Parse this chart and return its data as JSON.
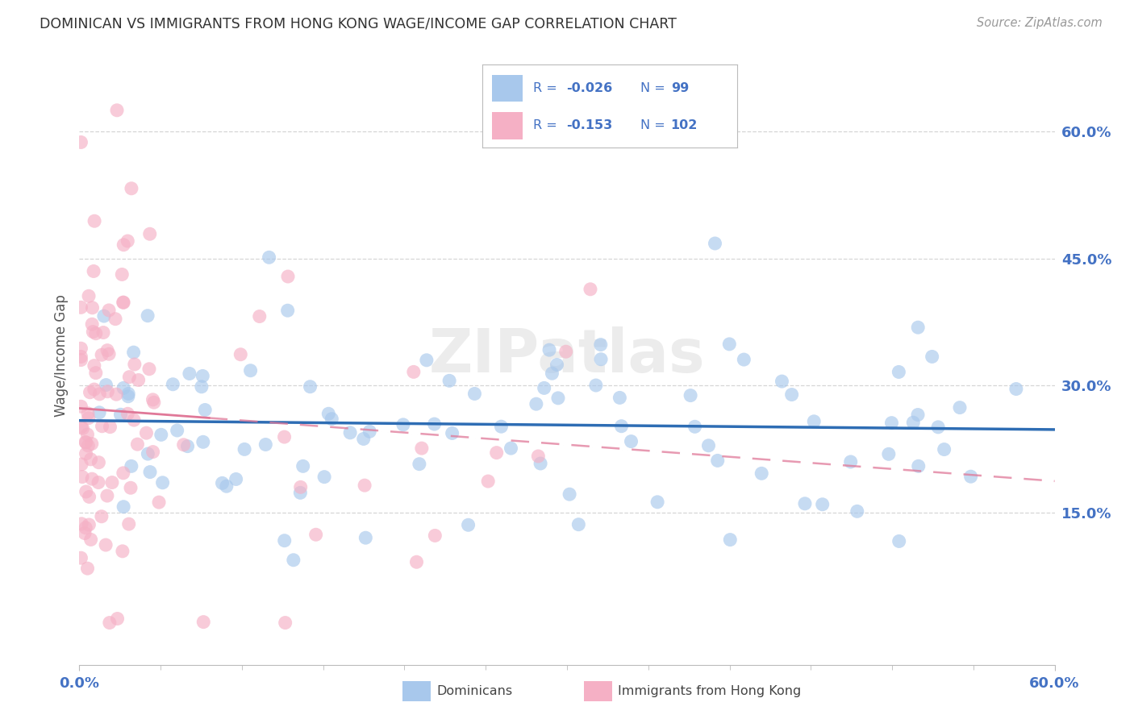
{
  "title": "DOMINICAN VS IMMIGRANTS FROM HONG KONG WAGE/INCOME GAP CORRELATION CHART",
  "source": "Source: ZipAtlas.com",
  "ylabel": "Wage/Income Gap",
  "legend_label_blue": "Dominicans",
  "legend_label_pink": "Immigrants from Hong Kong",
  "blue_color": "#A8C8EC",
  "pink_color": "#F5B0C5",
  "blue_line_color": "#2E6DB4",
  "pink_line_color": "#E07898",
  "background_color": "#FFFFFF",
  "grid_color": "#CCCCCC",
  "title_color": "#333333",
  "source_color": "#999999",
  "legend_text_color": "#4472C4",
  "watermark_color": "#DDDDDD",
  "watermark": "ZIPatlas",
  "blue_R": -0.026,
  "pink_R": -0.153,
  "blue_N": 99,
  "pink_N": 102,
  "xmin": 0.0,
  "xmax": 0.6,
  "ymin": -0.03,
  "ymax": 0.7,
  "ytick_vals": [
    0.6,
    0.45,
    0.3,
    0.15
  ],
  "ytick_labels": [
    "60.0%",
    "45.0%",
    "30.0%",
    "15.0%"
  ],
  "xtick_vals": [
    0.0,
    0.6
  ],
  "xtick_labels": [
    "0.0%",
    "60.0%"
  ]
}
